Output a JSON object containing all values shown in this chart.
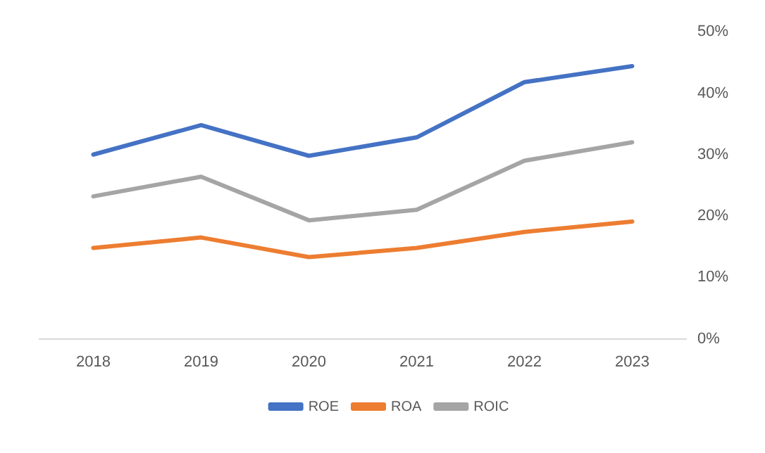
{
  "chart_data": {
    "type": "line",
    "categories": [
      "2018",
      "2019",
      "2020",
      "2021",
      "2022",
      "2023"
    ],
    "series": [
      {
        "name": "ROE",
        "color": "#4472c4",
        "values": [
          30.0,
          34.8,
          29.8,
          32.8,
          41.8,
          44.4
        ]
      },
      {
        "name": "ROA",
        "color": "#ed7d31",
        "values": [
          14.8,
          16.5,
          13.3,
          14.8,
          17.4,
          19.1
        ]
      },
      {
        "name": "ROIC",
        "color": "#a5a5a5",
        "values": [
          23.2,
          26.4,
          19.3,
          21.0,
          29.0,
          32.0
        ]
      }
    ],
    "ylim": [
      0,
      50
    ],
    "yticks": [
      {
        "value": 0,
        "label": "0%"
      },
      {
        "value": 10,
        "label": "10%"
      },
      {
        "value": 20,
        "label": "20%"
      },
      {
        "value": 30,
        "label": "30%"
      },
      {
        "value": 40,
        "label": "40%"
      },
      {
        "value": 50,
        "label": "50%"
      }
    ],
    "grid": false,
    "legend": "bottom",
    "marker": "none",
    "line_style": "solid"
  }
}
